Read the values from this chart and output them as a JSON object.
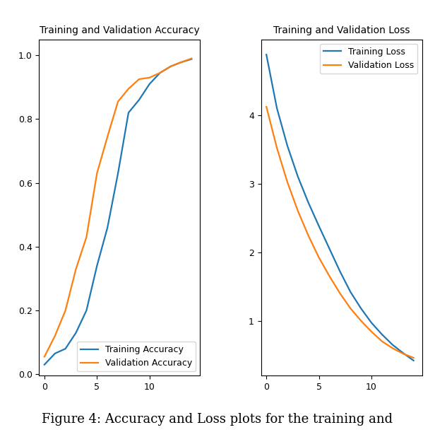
{
  "acc_title": "Training and Validation Accuracy",
  "loss_title": "Training and Validation Loss",
  "caption": "Figure 4: Accuracy and Loss plots for the training and",
  "acc_train_color": "#1f77b4",
  "acc_val_color": "#ff7f0e",
  "loss_train_color": "#1f77b4",
  "loss_val_color": "#ff7f0e",
  "epochs": [
    0,
    1,
    2,
    3,
    4,
    5,
    6,
    7,
    8,
    9,
    10,
    11,
    12,
    13,
    14
  ],
  "train_acc": [
    0.03,
    0.065,
    0.08,
    0.13,
    0.2,
    0.34,
    0.46,
    0.63,
    0.82,
    0.86,
    0.91,
    0.945,
    0.965,
    0.978,
    0.988
  ],
  "val_acc": [
    0.055,
    0.12,
    0.2,
    0.33,
    0.43,
    0.63,
    0.745,
    0.855,
    0.895,
    0.925,
    0.93,
    0.945,
    0.965,
    0.978,
    0.99
  ],
  "train_loss": [
    4.88,
    4.1,
    3.55,
    3.1,
    2.72,
    2.38,
    2.05,
    1.72,
    1.42,
    1.18,
    0.97,
    0.8,
    0.65,
    0.53,
    0.42
  ],
  "val_loss": [
    4.12,
    3.52,
    3.02,
    2.6,
    2.24,
    1.92,
    1.65,
    1.4,
    1.18,
    1.0,
    0.84,
    0.7,
    0.6,
    0.52,
    0.46
  ],
  "acc_ylim": [
    -0.005,
    1.05
  ],
  "loss_ylim_auto": true,
  "loss_yticks": [
    1,
    2,
    3,
    4
  ],
  "acc_yticks": [
    0.0,
    0.2,
    0.4,
    0.6,
    0.8,
    1.0
  ],
  "xlim": [
    -0.5,
    14.8
  ],
  "xticks": [
    0,
    5,
    10
  ],
  "legend_acc_labels": [
    "Training Accuracy",
    "Validation Accuracy"
  ],
  "legend_loss_labels": [
    "Training Loss",
    "Validation Loss"
  ],
  "legend_acc_loc": "lower right",
  "legend_loss_loc": "upper right",
  "linewidth": 1.6,
  "title_fontsize": 10,
  "tick_fontsize": 9,
  "legend_fontsize": 9,
  "caption_fontsize": 13,
  "background_color": "#ffffff"
}
